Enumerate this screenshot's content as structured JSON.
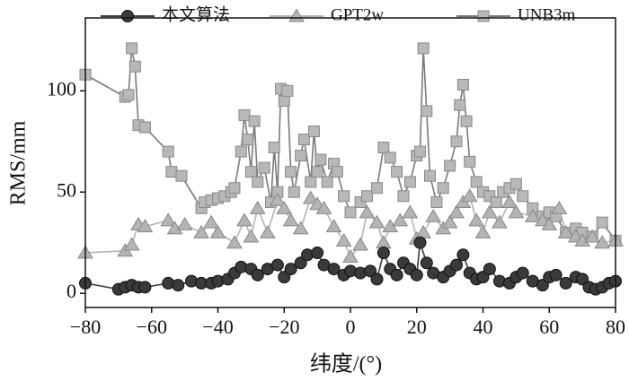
{
  "chart_data": {
    "type": "line",
    "xlabel": "纬度/(°)",
    "ylabel": "RMS/mm",
    "xlim": [
      -80,
      80
    ],
    "ylim": [
      -7,
      136
    ],
    "xticks": [
      {
        "value": -80,
        "label": "−80"
      },
      {
        "value": -60,
        "label": "−60"
      },
      {
        "value": -40,
        "label": "−40"
      },
      {
        "value": -20,
        "label": "−20"
      },
      0,
      20,
      40,
      60,
      80
    ],
    "yticks": [
      0,
      50,
      100
    ],
    "legend": "top",
    "series": [
      {
        "name": "本文算法",
        "color": "#3a3a3a",
        "marker": "circle",
        "x": [
          -80,
          -70,
          -68,
          -66,
          -64,
          -62,
          -55,
          -52,
          -48,
          -45,
          -42,
          -40,
          -37,
          -35,
          -33,
          -30,
          -28,
          -25,
          -22,
          -20,
          -18,
          -15,
          -13,
          -10,
          -8,
          -5,
          -2,
          0,
          3,
          6,
          8,
          10,
          12,
          14,
          16,
          18,
          20,
          21,
          23,
          25,
          28,
          30,
          32,
          34,
          36,
          38,
          40,
          42,
          45,
          48,
          50,
          52,
          55,
          58,
          60,
          62,
          65,
          68,
          70,
          72,
          74,
          76,
          78,
          80
        ],
        "values": [
          5,
          2,
          3,
          4,
          3,
          3,
          5,
          4,
          6,
          5,
          5,
          6,
          7,
          10,
          13,
          12,
          9,
          12,
          14,
          8,
          12,
          15,
          19,
          20,
          14,
          12,
          9,
          11,
          10,
          11,
          7,
          20,
          12,
          9,
          15,
          12,
          9,
          25,
          15,
          10,
          8,
          11,
          14,
          19,
          10,
          7,
          8,
          12,
          6,
          5,
          8,
          10,
          6,
          4,
          8,
          9,
          5,
          8,
          7,
          3,
          2,
          3,
          5,
          6
        ]
      },
      {
        "name": "GPT2w",
        "color": "#b4b4b4",
        "marker": "triangle",
        "x": [
          -80,
          -68,
          -66,
          -64,
          -62,
          -55,
          -53,
          -50,
          -45,
          -42,
          -40,
          -35,
          -32,
          -30,
          -28,
          -25,
          -22,
          -20,
          -18,
          -15,
          -12,
          -10,
          -8,
          -5,
          -2,
          0,
          3,
          5,
          8,
          10,
          12,
          15,
          18,
          20,
          22,
          25,
          28,
          30,
          32,
          34,
          36,
          38,
          40,
          42,
          45,
          48,
          50,
          55,
          58,
          60,
          63,
          65,
          68,
          70,
          73,
          76,
          80
        ],
        "values": [
          20,
          21,
          24,
          34,
          33,
          36,
          32,
          34,
          30,
          35,
          30,
          25,
          36,
          28,
          42,
          30,
          46,
          42,
          36,
          32,
          47,
          44,
          42,
          33,
          26,
          18,
          24,
          40,
          35,
          25,
          33,
          36,
          40,
          27,
          30,
          38,
          32,
          35,
          40,
          45,
          48,
          36,
          30,
          40,
          35,
          45,
          40,
          38,
          36,
          34,
          42,
          30,
          28,
          26,
          28,
          25,
          26
        ]
      },
      {
        "name": "UNB3m",
        "color": "#7a7a7a",
        "marker": "square",
        "x": [
          -80,
          -68,
          -67,
          -66,
          -65,
          -64,
          -62,
          -55,
          -54,
          -51,
          -45,
          -44,
          -42,
          -40,
          -38,
          -36,
          -35,
          -33,
          -32,
          -31,
          -30,
          -29,
          -28,
          -26,
          -24,
          -23,
          -22,
          -21,
          -20,
          -19,
          -18,
          -17,
          -15,
          -14,
          -12,
          -11,
          -10,
          -9,
          -7,
          -5,
          -4,
          -2,
          0,
          3,
          5,
          8,
          10,
          12,
          14,
          16,
          18,
          20,
          21,
          22,
          23,
          24,
          26,
          28,
          30,
          32,
          33,
          34,
          35,
          36,
          38,
          40,
          42,
          44,
          46,
          48,
          50,
          52,
          55,
          58,
          60,
          62,
          65,
          68,
          70,
          73,
          76,
          80
        ],
        "values": [
          108,
          97,
          98,
          121,
          112,
          83,
          82,
          70,
          60,
          58,
          42,
          45,
          46,
          47,
          48,
          50,
          52,
          70,
          88,
          76,
          60,
          85,
          55,
          62,
          45,
          72,
          50,
          101,
          95,
          100,
          60,
          50,
          68,
          76,
          55,
          80,
          60,
          66,
          55,
          64,
          60,
          48,
          40,
          45,
          48,
          52,
          72,
          67,
          60,
          48,
          55,
          68,
          70,
          121,
          90,
          58,
          45,
          52,
          63,
          75,
          93,
          103,
          85,
          65,
          55,
          50,
          48,
          45,
          50,
          52,
          54,
          48,
          42,
          38,
          40,
          38,
          30,
          32,
          30,
          28,
          35,
          26
        ]
      }
    ]
  }
}
